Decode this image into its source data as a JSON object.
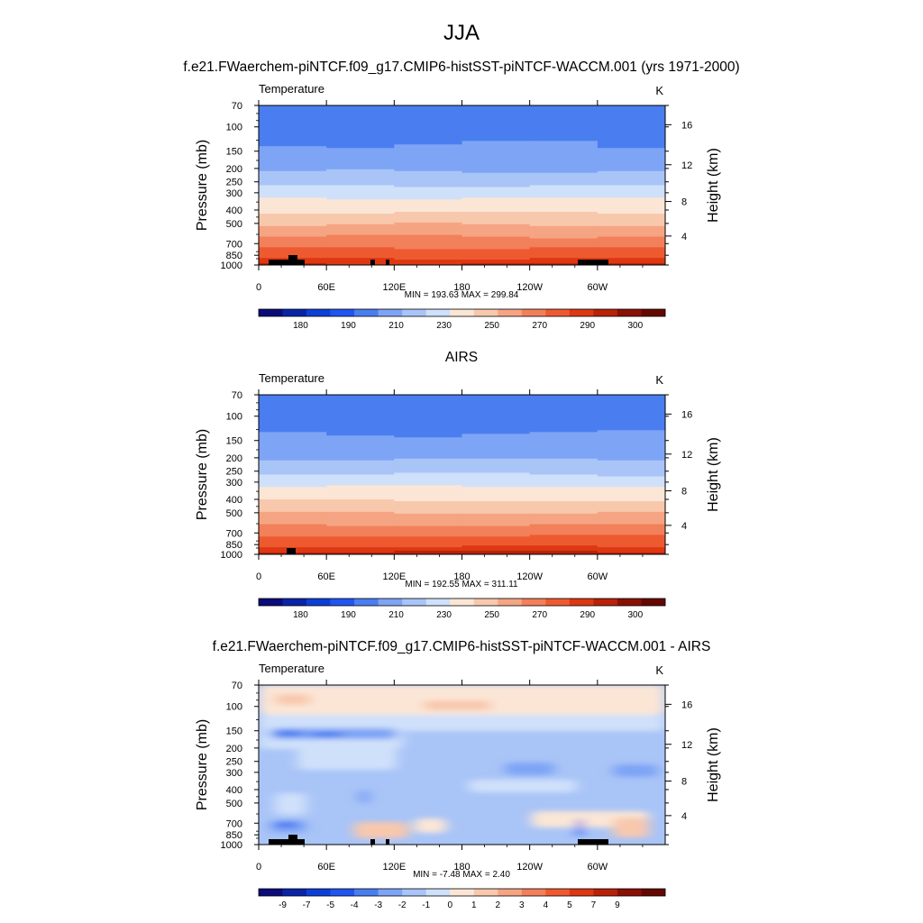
{
  "figure": {
    "season_title": "JJA",
    "panel1_title": "f.e21.FWaerchem-piNTCF.f09_g17.CMIP6-histSST-piNTCF-WACCM.001 (yrs 1971-2000)",
    "panel2_title": "AIRS",
    "panel3_title": "f.e21.FWaerchem-piNTCF.f09_g17.CMIP6-histSST-piNTCF-WACCM.001 - AIRS"
  },
  "chart_data": [
    {
      "type": "heatmap",
      "title": "f.e21.FWaerchem-piNTCF.f09_g17.CMIP6-histSST-piNTCF-WACCM.001 (yrs 1971-2000)",
      "variable_label": "Temperature",
      "units": "K",
      "ylabel": "Pressure (mb)",
      "ylabel_right": "Height (km)",
      "xlabel": "",
      "x_ticks": [
        "0",
        "60E",
        "120E",
        "180",
        "120W",
        "60W"
      ],
      "y_ticks": [
        "70",
        "100",
        "150",
        "200",
        "250",
        "300",
        "400",
        "500",
        "700",
        "850",
        "1000"
      ],
      "height_ticks": [
        "16",
        "12",
        "8",
        "4"
      ],
      "stats": "MIN = 193.63  MAX = 299.84",
      "colorbar_labels": [
        "180",
        "190",
        "210",
        "230",
        "250",
        "270",
        "290",
        "300"
      ],
      "colorbar_colors": [
        "#0b0b7a",
        "#0a24a8",
        "#0c3fd6",
        "#2055f0",
        "#4a7ef0",
        "#7ea4f5",
        "#a9c4f7",
        "#cfe0fa",
        "#fbe6d6",
        "#f8c8ad",
        "#f5a583",
        "#f2805a",
        "#ee5a30",
        "#dd3812",
        "#b82208",
        "#8a1004",
        "#650802"
      ],
      "profile_levels": [
        70,
        100,
        150,
        200,
        250,
        300,
        400,
        500,
        700,
        850,
        1000
      ],
      "profile_values": [
        202,
        205,
        212,
        218,
        226,
        236,
        248,
        259,
        276,
        287,
        296
      ]
    },
    {
      "type": "heatmap",
      "title": "AIRS",
      "variable_label": "Temperature",
      "units": "K",
      "ylabel": "Pressure (mb)",
      "ylabel_right": "Height (km)",
      "xlabel": "",
      "x_ticks": [
        "0",
        "60E",
        "120E",
        "180",
        "120W",
        "60W"
      ],
      "y_ticks": [
        "70",
        "100",
        "150",
        "200",
        "250",
        "300",
        "400",
        "500",
        "700",
        "850",
        "1000"
      ],
      "height_ticks": [
        "16",
        "12",
        "8",
        "4"
      ],
      "stats": "MIN = 192.55  MAX = 311.11",
      "colorbar_labels": [
        "180",
        "190",
        "210",
        "230",
        "250",
        "270",
        "290",
        "300"
      ],
      "colorbar_colors": [
        "#0b0b7a",
        "#0a24a8",
        "#0c3fd6",
        "#2055f0",
        "#4a7ef0",
        "#7ea4f5",
        "#a9c4f7",
        "#cfe0fa",
        "#fbe6d6",
        "#f8c8ad",
        "#f5a583",
        "#f2805a",
        "#ee5a30",
        "#dd3812",
        "#b82208",
        "#8a1004",
        "#650802"
      ],
      "profile_levels": [
        70,
        100,
        150,
        200,
        250,
        300,
        400,
        500,
        700,
        850,
        1000
      ],
      "profile_values": [
        201,
        205,
        212,
        219,
        227,
        237,
        249,
        260,
        277,
        288,
        298
      ]
    },
    {
      "type": "heatmap",
      "title": "f.e21.FWaerchem-piNTCF.f09_g17.CMIP6-histSST-piNTCF-WACCM.001 - AIRS",
      "variable_label": "Temperature",
      "units": "K",
      "ylabel": "Pressure (mb)",
      "ylabel_right": "Height (km)",
      "xlabel": "",
      "x_ticks": [
        "0",
        "60E",
        "120E",
        "180",
        "120W",
        "60W"
      ],
      "y_ticks": [
        "70",
        "100",
        "150",
        "200",
        "250",
        "300",
        "400",
        "500",
        "700",
        "850",
        "1000"
      ],
      "height_ticks": [
        "16",
        "12",
        "8",
        "4"
      ],
      "stats": "MIN =  -7.48  MAX =   2.40",
      "colorbar_labels": [
        "-9",
        "-7",
        "-5",
        "-4",
        "-3",
        "-2",
        "-1",
        "0",
        "1",
        "2",
        "3",
        "4",
        "5",
        "7",
        "9"
      ],
      "colorbar_colors": [
        "#0b0b7a",
        "#0a24a8",
        "#0c3fd6",
        "#2055f0",
        "#4a7ef0",
        "#7ea4f5",
        "#a9c4f7",
        "#cfe0fa",
        "#fbe6d6",
        "#f8c8ad",
        "#f5a583",
        "#f2805a",
        "#ee5a30",
        "#dd3812",
        "#b82208",
        "#8a1004",
        "#650802"
      ]
    }
  ]
}
